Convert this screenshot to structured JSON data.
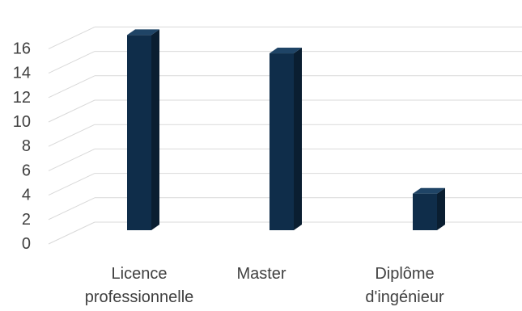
{
  "chart_data": {
    "type": "bar",
    "categories": [
      "Licence professionnelle",
      "Master",
      "Diplôme d'ingénieur"
    ],
    "category_lines": [
      [
        "Licence",
        "professionnelle"
      ],
      [
        "Master"
      ],
      [
        "Diplôme",
        "d'ingénieur"
      ]
    ],
    "values": [
      16,
      14.5,
      3
    ],
    "ylim": [
      0,
      16
    ],
    "yticks": [
      "0",
      "2",
      "4",
      "6",
      "8",
      "10",
      "12",
      "14",
      "16"
    ],
    "grid": true,
    "three_d": true,
    "colors": {
      "bar_front": "#0f2d4a",
      "bar_side": "#0a1e31",
      "bar_top": "#1f4466",
      "grid": "#d9d9d9",
      "tick_text": "#404040",
      "label_text": "#404040"
    }
  }
}
